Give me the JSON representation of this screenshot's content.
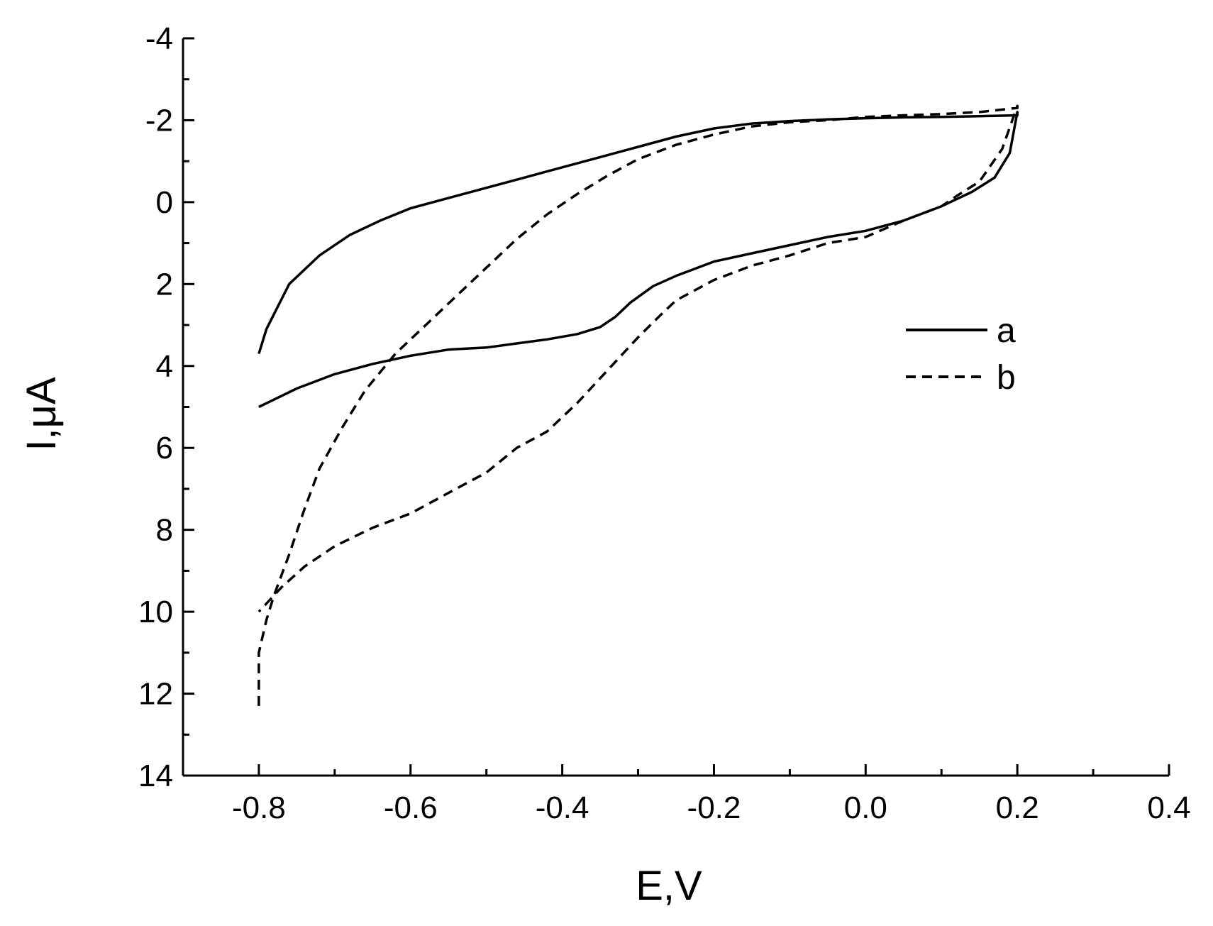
{
  "chart_data": {
    "type": "line",
    "title": "",
    "xlabel": "E,V",
    "ylabel": "I,μA",
    "xlim": [
      -0.9,
      0.4
    ],
    "ylim": [
      -4,
      14
    ],
    "y_inverted": true,
    "x_major_ticks": [
      -0.8,
      -0.6,
      -0.4,
      -0.2,
      0.0,
      0.2,
      0.4
    ],
    "x_tick_labels": [
      "-0.8",
      "-0.6",
      "-0.4",
      "-0.2",
      "0.0",
      "0.2",
      "0.4"
    ],
    "y_major_ticks": [
      -4,
      -2,
      0,
      2,
      4,
      6,
      8,
      10,
      12,
      14
    ],
    "y_tick_labels": [
      "-4",
      "-2",
      "0",
      "2",
      "4",
      "6",
      "8",
      "10",
      "12",
      "14"
    ],
    "grid": false,
    "legend_position": "right-middle",
    "series": [
      {
        "name": "a",
        "style": "solid",
        "color": "#000000",
        "x": [
          -0.8,
          -0.79,
          -0.76,
          -0.72,
          -0.68,
          -0.64,
          -0.6,
          -0.55,
          -0.5,
          -0.45,
          -0.4,
          -0.35,
          -0.3,
          -0.25,
          -0.2,
          -0.15,
          -0.1,
          -0.05,
          0.0,
          0.05,
          0.1,
          0.15,
          0.2,
          0.2,
          0.19,
          0.17,
          0.14,
          0.1,
          0.05,
          0.0,
          -0.05,
          -0.1,
          -0.15,
          -0.2,
          -0.25,
          -0.28,
          -0.31,
          -0.33,
          -0.35,
          -0.38,
          -0.42,
          -0.46,
          -0.5,
          -0.55,
          -0.6,
          -0.65,
          -0.7,
          -0.75,
          -0.8
        ],
        "y": [
          3.7,
          3.1,
          2.0,
          1.3,
          0.8,
          0.45,
          0.15,
          -0.1,
          -0.35,
          -0.6,
          -0.85,
          -1.1,
          -1.35,
          -1.6,
          -1.8,
          -1.92,
          -1.98,
          -2.02,
          -2.05,
          -2.07,
          -2.08,
          -2.1,
          -2.12,
          -2.2,
          -1.2,
          -0.6,
          -0.25,
          0.1,
          0.45,
          0.7,
          0.85,
          1.05,
          1.25,
          1.45,
          1.8,
          2.05,
          2.45,
          2.8,
          3.05,
          3.22,
          3.35,
          3.45,
          3.55,
          3.6,
          3.75,
          3.95,
          4.2,
          4.55,
          5.0
        ]
      },
      {
        "name": "b",
        "style": "dashed",
        "color": "#000000",
        "x": [
          -0.8,
          -0.8,
          -0.79,
          -0.78,
          -0.76,
          -0.74,
          -0.72,
          -0.69,
          -0.66,
          -0.62,
          -0.58,
          -0.54,
          -0.5,
          -0.46,
          -0.42,
          -0.38,
          -0.34,
          -0.3,
          -0.25,
          -0.2,
          -0.15,
          -0.1,
          -0.05,
          0.0,
          0.05,
          0.1,
          0.15,
          0.2,
          0.2,
          0.18,
          0.15,
          0.12,
          0.1,
          0.05,
          0.0,
          -0.05,
          -0.1,
          -0.15,
          -0.2,
          -0.25,
          -0.27,
          -0.3,
          -0.34,
          -0.38,
          -0.42,
          -0.46,
          -0.5,
          -0.55,
          -0.6,
          -0.65,
          -0.7,
          -0.74,
          -0.77,
          -0.79,
          -0.8
        ],
        "y": [
          12.3,
          11.0,
          10.2,
          9.6,
          8.6,
          7.5,
          6.5,
          5.5,
          4.6,
          3.7,
          3.0,
          2.3,
          1.6,
          0.9,
          0.3,
          -0.2,
          -0.65,
          -1.05,
          -1.4,
          -1.65,
          -1.85,
          -1.95,
          -2.0,
          -2.08,
          -2.12,
          -2.15,
          -2.2,
          -2.3,
          -2.35,
          -1.3,
          -0.5,
          -0.15,
          0.1,
          0.45,
          0.85,
          1.0,
          1.3,
          1.55,
          1.9,
          2.4,
          2.75,
          3.3,
          4.1,
          4.9,
          5.6,
          6.0,
          6.6,
          7.1,
          7.6,
          7.95,
          8.4,
          8.9,
          9.4,
          9.8,
          10.0
        ]
      }
    ]
  }
}
